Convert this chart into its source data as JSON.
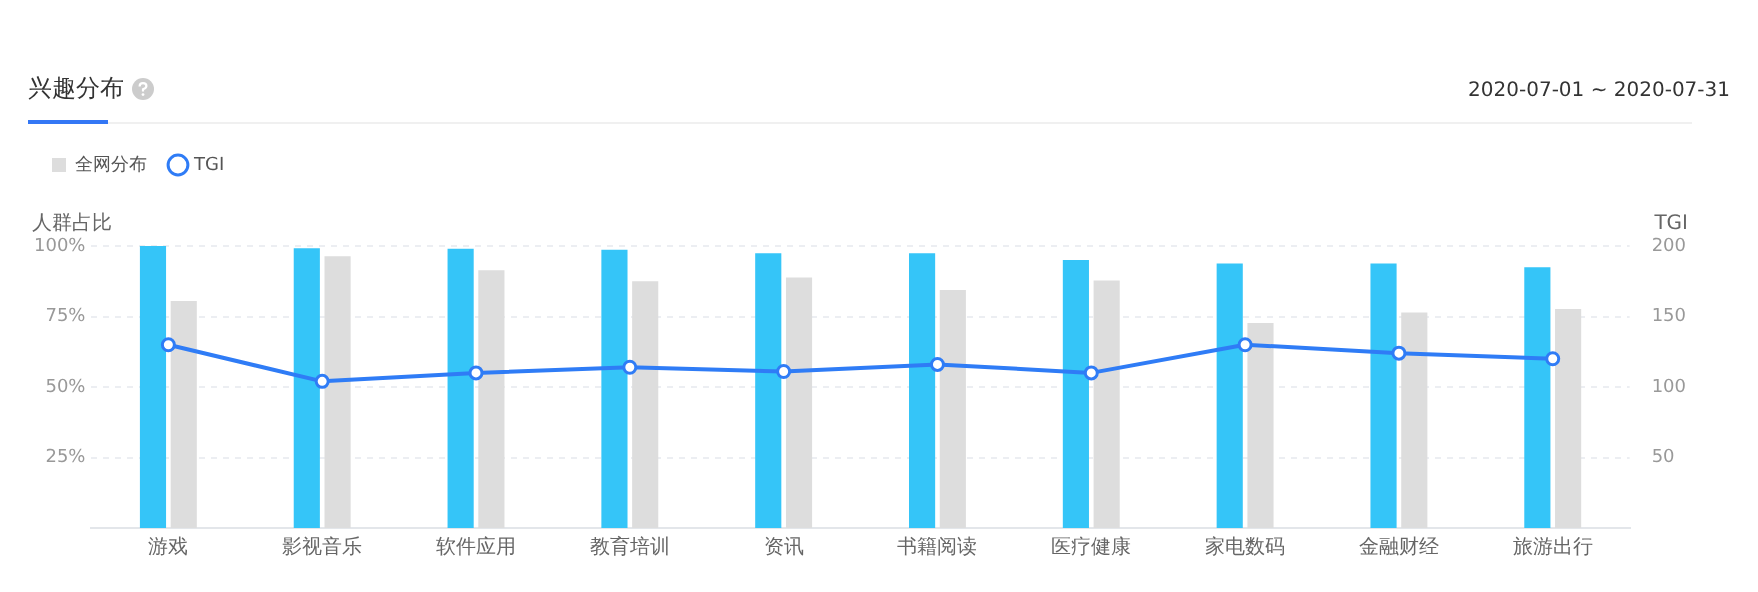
{
  "chart_data": {
    "type": "bar",
    "title": "兴趣分布",
    "annotations": [
      "2020-07-01 ~ 2020-07-31"
    ],
    "ylabel": "人群占比",
    "y2label": "TGI",
    "categories": [
      "游戏",
      "影视音乐",
      "软件应用",
      "教育培训",
      "资讯",
      "书籍阅读",
      "医疗健康",
      "家电数码",
      "金融财经",
      "旅游出行"
    ],
    "series": [
      {
        "color": "#35c5f8",
        "values": [
          100,
          99.2,
          99,
          98.7,
          97.4,
          97.4,
          95,
          93.8,
          93.8,
          92.5
        ]
      },
      {
        "name": "全网分布",
        "color": "#dddddd",
        "values": [
          80.5,
          96.4,
          91.4,
          87.5,
          88.8,
          84.4,
          87.8,
          72.7,
          76.4,
          77.7
        ]
      },
      {
        "name": "TGI",
        "type": "line",
        "axis": "y2",
        "color": "#2f7cf6",
        "values": [
          130,
          104,
          110,
          114,
          111,
          116,
          110,
          130,
          124,
          120
        ]
      }
    ],
    "ylim": [
      0,
      100
    ],
    "yticks": [
      {
        "value": 25,
        "label": "25%"
      },
      {
        "value": 50,
        "label": "50%"
      },
      {
        "value": 75,
        "label": "75%"
      },
      {
        "value": 100,
        "label": "100%"
      }
    ],
    "y2lim": [
      0,
      200
    ],
    "y2ticks": [
      50,
      100,
      150,
      200
    ],
    "grid": "y",
    "legend": "top left",
    "marker": "circle"
  }
}
